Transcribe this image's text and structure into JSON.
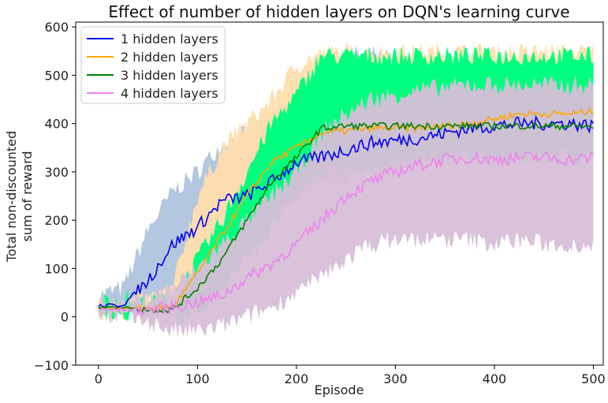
{
  "chart_data": {
    "type": "line",
    "title": "Effect of number of hidden layers on DQN's learning curve",
    "xlabel": "Episode",
    "ylabel_line1": "Total non-discounted",
    "ylabel_line2": "sum of reward",
    "xlim": [
      -23,
      510
    ],
    "ylim": [
      -100,
      610
    ],
    "xticks": [
      0,
      100,
      200,
      300,
      400,
      500
    ],
    "yticks": [
      -100,
      0,
      100,
      200,
      300,
      400,
      500,
      600
    ],
    "legend_position": "top-left",
    "x": [
      0,
      25,
      50,
      75,
      100,
      125,
      150,
      175,
      200,
      225,
      250,
      275,
      300,
      325,
      350,
      375,
      400,
      425,
      450,
      475,
      500
    ],
    "series": [
      {
        "name": "1 hidden layers",
        "color": "#0000ee",
        "band_color": "#b0c4de",
        "mean": [
          22,
          25,
          75,
          150,
          185,
          240,
          250,
          280,
          320,
          330,
          345,
          360,
          365,
          370,
          380,
          390,
          395,
          400,
          400,
          400,
          395
        ],
        "lower": [
          10,
          10,
          30,
          60,
          100,
          150,
          180,
          220,
          250,
          280,
          290,
          300,
          310,
          320,
          330,
          340,
          350,
          350,
          350,
          355,
          350
        ],
        "upper": [
          45,
          60,
          180,
          260,
          300,
          360,
          380,
          420,
          460,
          500,
          540,
          545,
          530,
          525,
          520,
          520,
          515,
          520,
          515,
          520,
          510
        ]
      },
      {
        "name": "2 hidden layers",
        "color": "#ffa500",
        "band_color": "#ffdead",
        "mean": [
          18,
          18,
          18,
          20,
          90,
          170,
          250,
          320,
          350,
          380,
          385,
          390,
          390,
          390,
          395,
          400,
          410,
          420,
          420,
          420,
          425
        ],
        "lower": [
          8,
          5,
          5,
          0,
          20,
          80,
          150,
          230,
          300,
          340,
          350,
          360,
          360,
          365,
          370,
          375,
          380,
          390,
          390,
          390,
          390
        ],
        "upper": [
          35,
          35,
          35,
          60,
          250,
          350,
          400,
          450,
          520,
          545,
          548,
          548,
          548,
          548,
          548,
          548,
          548,
          548,
          548,
          548,
          548
        ]
      },
      {
        "name": "3 hidden layers",
        "color": "#008000",
        "band_color": "#00ff7f",
        "mean": [
          20,
          20,
          15,
          15,
          60,
          120,
          200,
          280,
          330,
          390,
          395,
          395,
          395,
          395,
          395,
          395,
          395,
          395,
          395,
          395,
          393
        ],
        "lower": [
          10,
          5,
          0,
          0,
          10,
          60,
          120,
          180,
          250,
          300,
          300,
          300,
          320,
          330,
          330,
          330,
          330,
          330,
          330,
          330,
          330
        ],
        "upper": [
          30,
          40,
          30,
          30,
          120,
          200,
          300,
          400,
          460,
          540,
          540,
          540,
          540,
          540,
          540,
          540,
          540,
          540,
          540,
          540,
          540
        ]
      },
      {
        "name": "4 hidden layers",
        "color": "#ee82ee",
        "band_color": "#d8bfd8",
        "mean": [
          15,
          15,
          15,
          20,
          30,
          45,
          80,
          110,
          150,
          200,
          250,
          280,
          300,
          315,
          325,
          330,
          325,
          330,
          330,
          325,
          330
        ],
        "lower": [
          5,
          0,
          -10,
          -30,
          -30,
          -20,
          0,
          20,
          50,
          80,
          120,
          150,
          160,
          160,
          160,
          160,
          150,
          160,
          150,
          150,
          150
        ],
        "upper": [
          30,
          30,
          40,
          60,
          100,
          150,
          200,
          250,
          300,
          380,
          420,
          450,
          460,
          470,
          475,
          480,
          480,
          480,
          480,
          480,
          480
        ]
      }
    ]
  }
}
